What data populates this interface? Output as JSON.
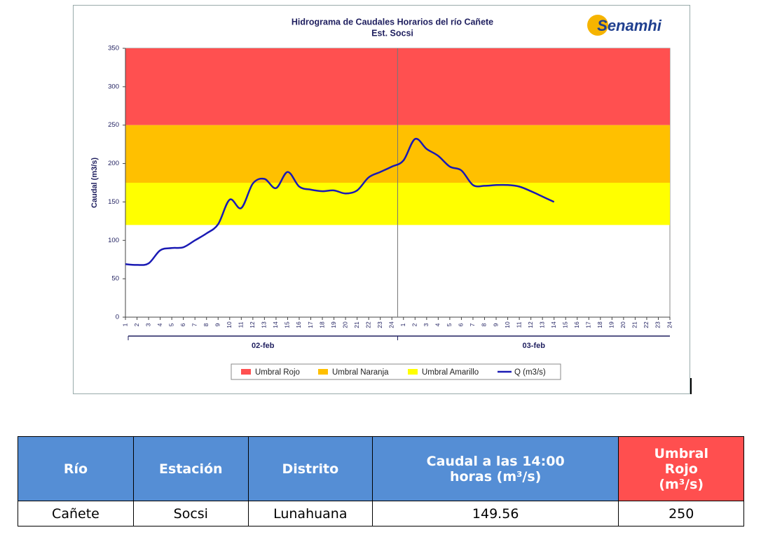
{
  "chart_data": {
    "type": "line",
    "title": "Hidrograma de Caudales Horarios del río Cañete",
    "subtitle": "Est. Socsi",
    "logo": "Senamhi",
    "y_label": "Caudal  (m3/s)",
    "categories": [
      "1",
      "2",
      "3",
      "4",
      "5",
      "6",
      "7",
      "8",
      "9",
      "10",
      "11",
      "12",
      "13",
      "14",
      "15",
      "16",
      "17",
      "18",
      "19",
      "20",
      "21",
      "22",
      "23",
      "24",
      "1",
      "2",
      "3",
      "4",
      "5",
      "6",
      "7",
      "8",
      "9",
      "10",
      "11",
      "12",
      "13",
      "14",
      "15",
      "16",
      "17",
      "18",
      "19",
      "20",
      "21",
      "22",
      "23",
      "24"
    ],
    "groups": [
      "02-feb",
      "03-feb"
    ],
    "ylim": [
      0,
      350
    ],
    "yticks": [
      0,
      50,
      100,
      150,
      200,
      250,
      300,
      350
    ],
    "bands": [
      {
        "name": "Umbral Rojo",
        "color": "#ff5050",
        "from": 250,
        "to": 350
      },
      {
        "name": "Umbral Naranja",
        "color": "#ffc000",
        "from": 175,
        "to": 250
      },
      {
        "name": "Umbral Amarillo",
        "color": "#ffff00",
        "from": 120,
        "to": 175
      }
    ],
    "series": [
      {
        "name": "Q (m3/s)",
        "color": "#1a1ab4",
        "values": [
          69,
          68,
          70,
          87,
          90,
          91,
          100,
          109,
          121,
          153,
          142,
          174,
          180,
          168,
          189,
          170,
          166,
          164,
          165,
          161,
          165,
          182,
          189,
          196,
          204,
          232,
          219,
          210,
          196,
          191,
          172,
          171,
          172,
          172,
          170,
          164,
          157,
          150,
          null,
          null,
          null,
          null,
          null,
          null,
          null,
          null,
          null,
          null
        ]
      }
    ]
  },
  "table": {
    "header": [
      "Río",
      "Estación",
      "Distrito",
      "Caudal a las 14:00 horas (m³/s)",
      "Umbral Rojo (m³/s)"
    ],
    "rows": [
      [
        "Cañete",
        "Socsi",
        "Lunahuana",
        149.56,
        250
      ]
    ]
  }
}
